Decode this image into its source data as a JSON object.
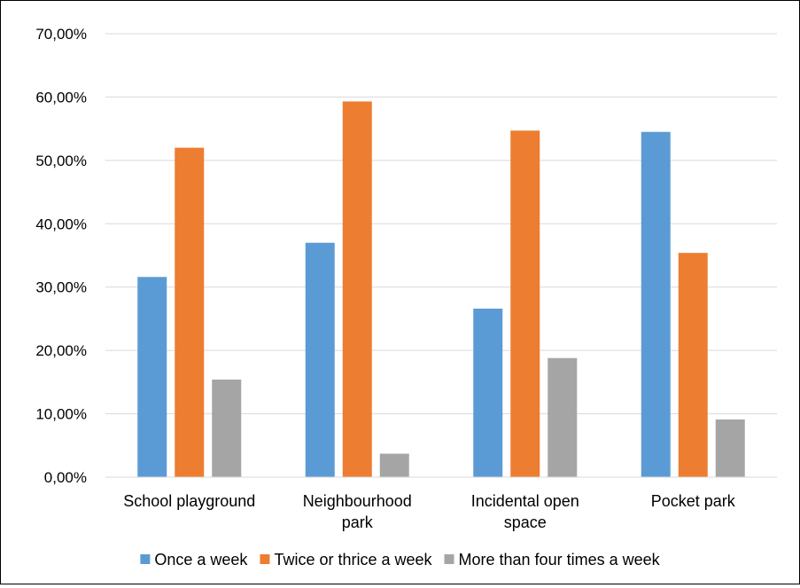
{
  "chart_data": {
    "type": "bar",
    "title": "",
    "xlabel": "",
    "ylabel": "",
    "ylim": [
      0,
      70
    ],
    "y_tick_labels": [
      "0,00%",
      "10,00%",
      "20,00%",
      "30,00%",
      "40,00%",
      "50,00%",
      "60,00%",
      "70,00%"
    ],
    "y_ticks": [
      0,
      10,
      20,
      30,
      40,
      50,
      60,
      70
    ],
    "categories": [
      [
        "School playground"
      ],
      [
        "Neighbourhood",
        "park"
      ],
      [
        "Incidental open",
        "space"
      ],
      [
        "Pocket park"
      ]
    ],
    "series": [
      {
        "name": "Once a week",
        "color": "#5b9bd5",
        "values": [
          31.6,
          37.0,
          26.6,
          54.5
        ]
      },
      {
        "name": "Twice or thrice a week",
        "color": "#ed7d31",
        "values": [
          52.0,
          59.3,
          54.7,
          35.4
        ]
      },
      {
        "name": "More than four times a week",
        "color": "#a5a5a5",
        "values": [
          15.4,
          3.7,
          18.8,
          9.1
        ]
      }
    ],
    "grid": true,
    "legend_position": "bottom"
  }
}
